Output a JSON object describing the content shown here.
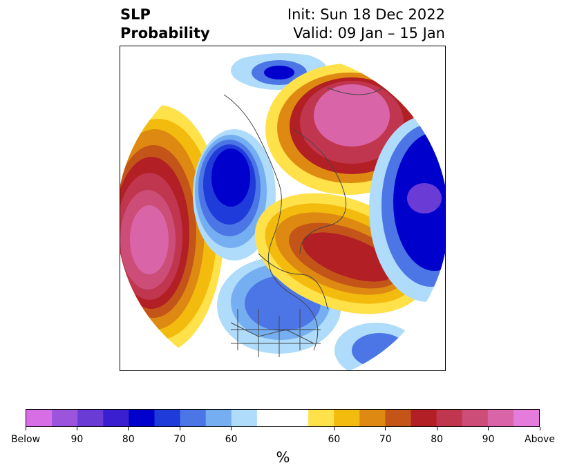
{
  "title": {
    "line1_left": "SLP",
    "line2_left": "Probability",
    "line1_right": "Init: Sun 18 Dec 2022",
    "line2_right": "Valid: 09 Jan – 15 Jan"
  },
  "colorbar": {
    "colors": [
      "#d86ee6",
      "#9b55dc",
      "#6b3bd6",
      "#3a1fd1",
      "#0000cd",
      "#1f3bd9",
      "#4c76e6",
      "#76aef2",
      "#aedcfa",
      "#ffffff",
      "#ffffff",
      "#ffe14a",
      "#f3bb0e",
      "#de8a12",
      "#c45519",
      "#b21f24",
      "#c1364f",
      "#cc4d78",
      "#d965a8",
      "#e57bdb"
    ],
    "tick_labels": [
      "Below",
      "90",
      "80",
      "70",
      "60",
      "60",
      "70",
      "80",
      "90",
      "Above"
    ],
    "unit": "%"
  }
}
